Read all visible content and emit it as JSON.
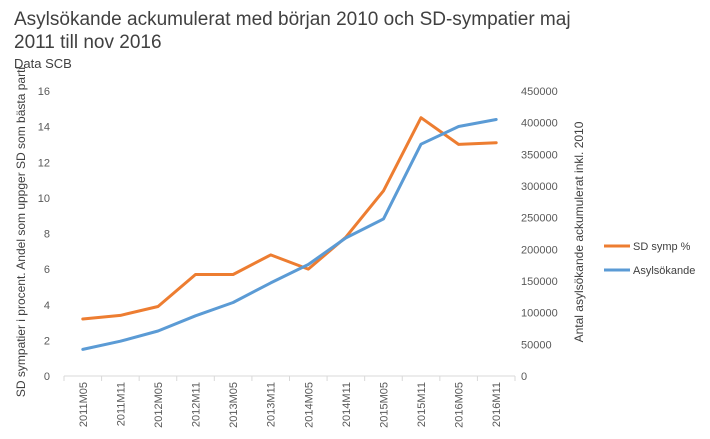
{
  "chart_data": {
    "type": "line",
    "title": "Asylsökande ackumulerat med början 2010 och SD-sympatier maj 2011 till nov 2016",
    "subtitle": "Data SCB",
    "ylabel": "SD sympatier i procent. Andel som uppger SD som bästa parti",
    "y2label": "Antal asylsökande ackumulerat inkl. 2010",
    "xlabel": "",
    "categories": [
      "2011M05",
      "2011M11",
      "2012M05",
      "2012M11",
      "2013M05",
      "2013M11",
      "2014M05",
      "2014M11",
      "2015M05",
      "2015M11",
      "2016M05",
      "2016M11"
    ],
    "ylim": [
      0,
      16
    ],
    "yticks": [
      0,
      2,
      4,
      6,
      8,
      10,
      12,
      14,
      16
    ],
    "y2lim": [
      0,
      450000
    ],
    "y2ticks": [
      0,
      50000,
      100000,
      150000,
      200000,
      250000,
      300000,
      350000,
      400000,
      450000
    ],
    "grid": false,
    "legend_position": "right",
    "series": [
      {
        "name": "SD symp %",
        "axis": "left",
        "color": "#ED7D31",
        "values": [
          3.2,
          3.4,
          3.9,
          5.7,
          5.7,
          6.8,
          6.0,
          7.8,
          10.4,
          14.5,
          13.0,
          13.1
        ]
      },
      {
        "name": "Asylsökande",
        "axis": "right",
        "color": "#5B9BD5",
        "values": [
          42000,
          55000,
          71000,
          95000,
          116000,
          147000,
          176000,
          218000,
          248000,
          366000,
          394000,
          405000
        ]
      }
    ]
  }
}
